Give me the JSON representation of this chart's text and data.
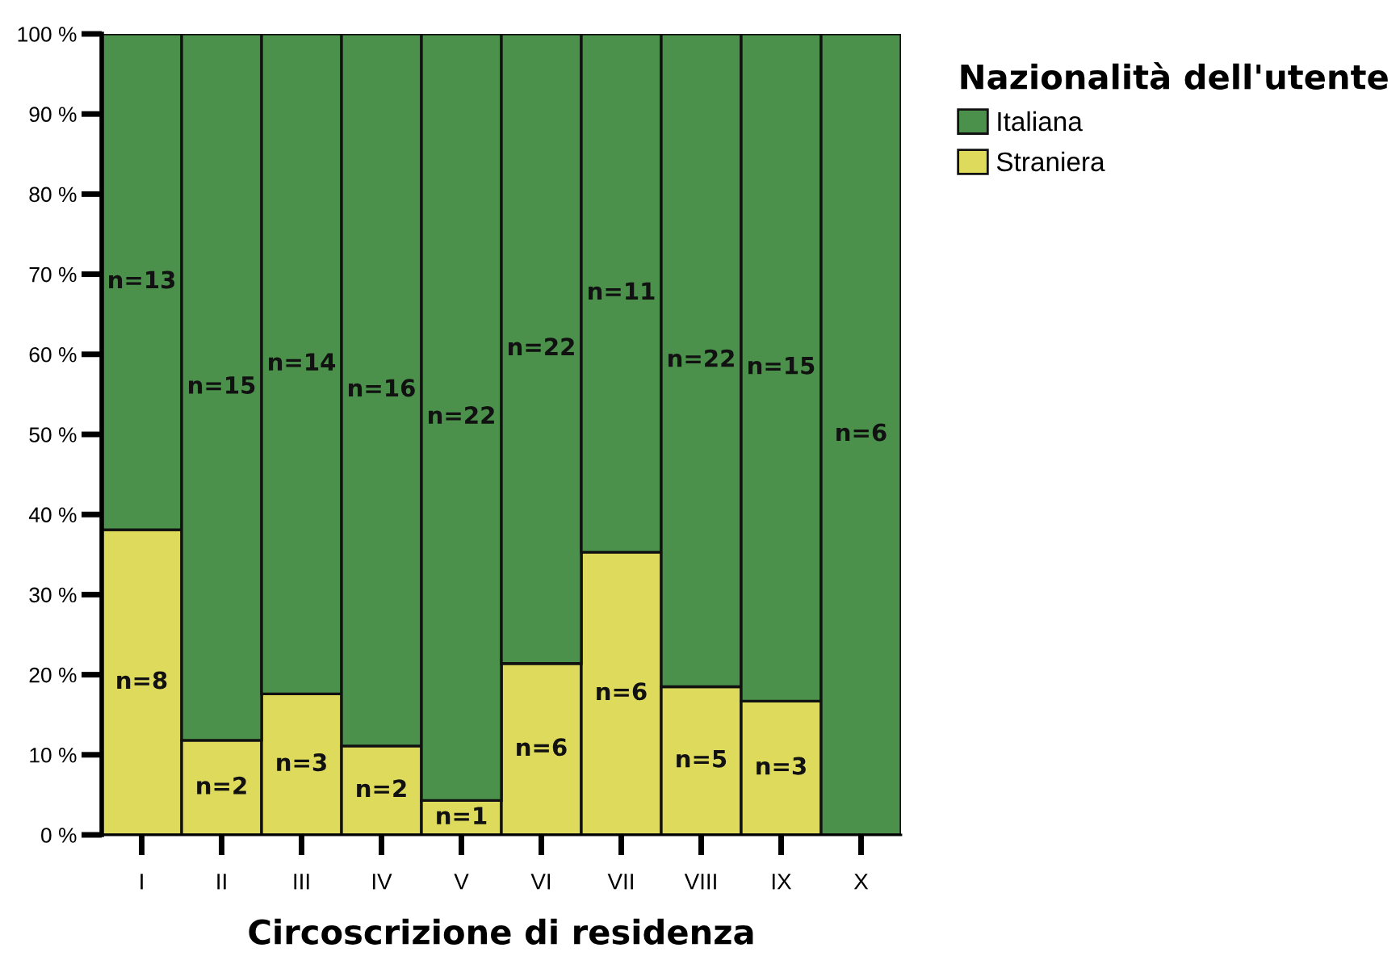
{
  "chart_data": {
    "type": "bar",
    "stacked": true,
    "categories": [
      "I",
      "II",
      "III",
      "IV",
      "V",
      "VI",
      "VII",
      "VIII",
      "IX",
      "X"
    ],
    "series": [
      {
        "name": "Straniera",
        "color": "#dedb5c",
        "values": [
          38.1,
          11.8,
          17.6,
          11.1,
          4.3,
          21.4,
          35.3,
          18.5,
          16.7,
          0
        ]
      },
      {
        "name": "Italiana",
        "color": "#4b914b",
        "values": [
          61.9,
          88.2,
          82.4,
          88.9,
          95.7,
          78.6,
          64.7,
          81.5,
          83.3,
          100
        ]
      }
    ],
    "annotations": [
      "n=8",
      "n=2",
      "n=3",
      "n=2",
      "n=1",
      "n=6",
      "n=6",
      "n=5",
      "n=3",
      "n=13",
      "n=15",
      "n=14",
      "n=16",
      "n=22",
      "n=22",
      "n=11",
      "n=22",
      "n=15",
      "n=6"
    ],
    "xlabel": "Circoscrizione di residenza",
    "legend_title": "Nazionalità dell'utente",
    "legend": "top right",
    "ylim": [
      0,
      100
    ],
    "yticks": [
      {
        "value": 0,
        "label": "0 %"
      },
      {
        "value": 10,
        "label": "10 %"
      },
      {
        "value": 20,
        "label": "20 %"
      },
      {
        "value": 30,
        "label": "30 %"
      },
      {
        "value": 40,
        "label": "40 %"
      },
      {
        "value": 50,
        "label": "50 %"
      },
      {
        "value": 60,
        "label": "60 %"
      },
      {
        "value": 70,
        "label": "70 %"
      },
      {
        "value": 80,
        "label": "80 %"
      },
      {
        "value": 90,
        "label": "90 %"
      },
      {
        "value": 100,
        "label": "100 %"
      }
    ],
    "grid": false
  }
}
